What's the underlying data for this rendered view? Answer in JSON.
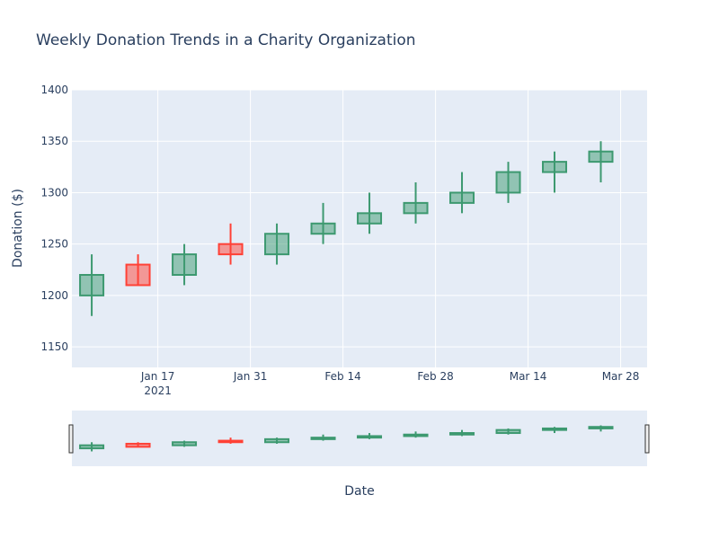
{
  "chart_data": {
    "type": "candlestick",
    "title": "Weekly Donation Trends in a Charity Organization",
    "xlabel": "Date",
    "ylabel": "Donation ($)",
    "ylim": [
      1130,
      1400
    ],
    "yticks": [
      1150,
      1200,
      1250,
      1300,
      1350,
      1400
    ],
    "xticks": [
      {
        "date": "2021-01-17",
        "label": "Jan 17",
        "sublabel": "2021"
      },
      {
        "date": "2021-01-31",
        "label": "Jan 31",
        "sublabel": ""
      },
      {
        "date": "2021-02-14",
        "label": "Feb 14",
        "sublabel": ""
      },
      {
        "date": "2021-02-28",
        "label": "Feb 28",
        "sublabel": ""
      },
      {
        "date": "2021-03-14",
        "label": "Mar 14",
        "sublabel": ""
      },
      {
        "date": "2021-03-28",
        "label": "Mar 28",
        "sublabel": ""
      }
    ],
    "xlim": [
      "2021-01-04",
      "2021-04-01"
    ],
    "grid": true,
    "colors": {
      "increasing_line": "#3D9970",
      "increasing_fill": "rgba(61,153,112,0.5)",
      "decreasing_line": "#FF4136",
      "decreasing_fill": "rgba(255,65,54,0.5)",
      "plot_bg": "#E5ECF6",
      "text": "#2a3f5f"
    },
    "series": [
      {
        "date": "2021-01-07",
        "open": 1200,
        "high": 1240,
        "low": 1180,
        "close": 1220
      },
      {
        "date": "2021-01-14",
        "open": 1230,
        "high": 1240,
        "low": 1210,
        "close": 1210
      },
      {
        "date": "2021-01-21",
        "open": 1220,
        "high": 1250,
        "low": 1210,
        "close": 1240
      },
      {
        "date": "2021-01-28",
        "open": 1250,
        "high": 1270,
        "low": 1230,
        "close": 1240
      },
      {
        "date": "2021-02-04",
        "open": 1240,
        "high": 1270,
        "low": 1230,
        "close": 1260
      },
      {
        "date": "2021-02-11",
        "open": 1260,
        "high": 1290,
        "low": 1250,
        "close": 1270
      },
      {
        "date": "2021-02-18",
        "open": 1270,
        "high": 1300,
        "low": 1260,
        "close": 1280
      },
      {
        "date": "2021-02-25",
        "open": 1280,
        "high": 1310,
        "low": 1270,
        "close": 1290
      },
      {
        "date": "2021-03-04",
        "open": 1290,
        "high": 1320,
        "low": 1280,
        "close": 1300
      },
      {
        "date": "2021-03-11",
        "open": 1300,
        "high": 1330,
        "low": 1290,
        "close": 1320
      },
      {
        "date": "2021-03-18",
        "open": 1320,
        "high": 1340,
        "low": 1300,
        "close": 1330
      },
      {
        "date": "2021-03-25",
        "open": 1330,
        "high": 1350,
        "low": 1310,
        "close": 1340
      }
    ],
    "rangeslider": true
  }
}
